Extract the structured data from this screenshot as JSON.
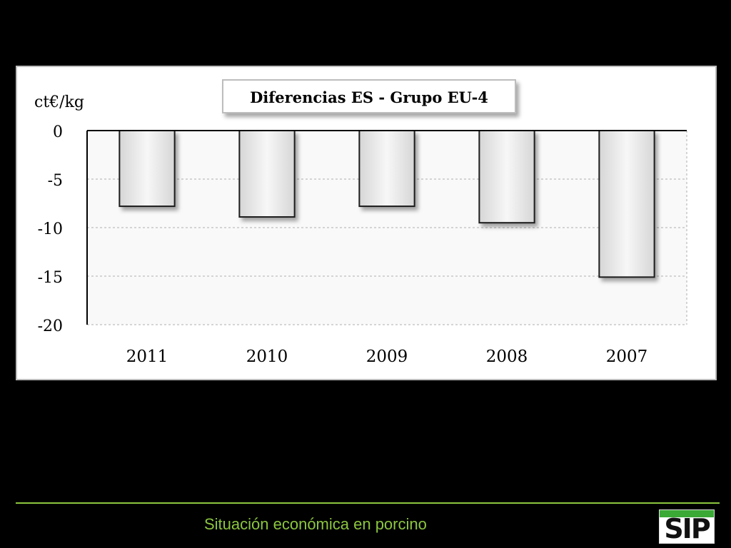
{
  "chart_data": {
    "type": "bar",
    "title": "Diferencias ES - Grupo EU-4",
    "ylabel": "ct€/kg",
    "categories": [
      "2011",
      "2010",
      "2009",
      "2008",
      "2007"
    ],
    "values": [
      -7.8,
      -8.9,
      -7.8,
      -9.5,
      -15.1
    ],
    "ylim": [
      -20,
      0
    ],
    "yticks": [
      0,
      -5,
      -10,
      -15,
      -20
    ],
    "ytick_labels": [
      "0",
      "-5",
      "-10",
      "-15",
      "-20"
    ],
    "grid": true,
    "colors": {
      "bar_fill": "#efefef",
      "bar_edge": "#1a1a1a",
      "plot_bg": "#f9f9f9",
      "grid": "#c8c8c8"
    }
  },
  "footer": {
    "text": "Situación económica en porcino",
    "accent_color": "#8cc63f",
    "logo_text": "SIP"
  }
}
